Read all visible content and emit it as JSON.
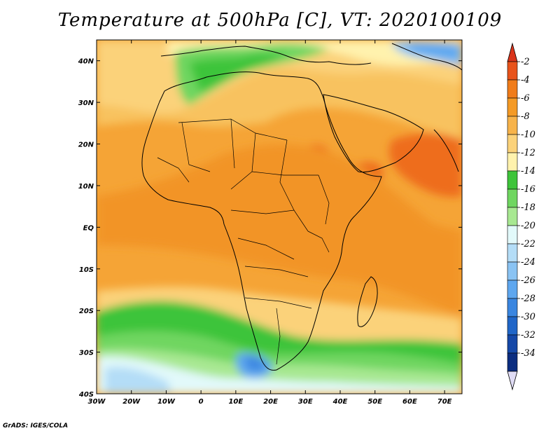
{
  "title": "Temperature at 500hPa [C], VT: 2020100109",
  "credit": "GrADS: IGES/COLA",
  "map": {
    "lon_range": [
      -30,
      75
    ],
    "lat_range": [
      -40,
      45
    ],
    "lon_ticks": [
      {
        "value": -30,
        "label": "30W"
      },
      {
        "value": -20,
        "label": "20W"
      },
      {
        "value": -10,
        "label": "10W"
      },
      {
        "value": 0,
        "label": "0"
      },
      {
        "value": 10,
        "label": "10E"
      },
      {
        "value": 20,
        "label": "20E"
      },
      {
        "value": 30,
        "label": "30E"
      },
      {
        "value": 40,
        "label": "40E"
      },
      {
        "value": 50,
        "label": "50E"
      },
      {
        "value": 60,
        "label": "60E"
      },
      {
        "value": 70,
        "label": "70E"
      }
    ],
    "lat_ticks": [
      {
        "value": 40,
        "label": "40N"
      },
      {
        "value": 30,
        "label": "30N"
      },
      {
        "value": 20,
        "label": "20N"
      },
      {
        "value": 10,
        "label": "10N"
      },
      {
        "value": 0,
        "label": "EQ"
      },
      {
        "value": -10,
        "label": "10S"
      },
      {
        "value": -20,
        "label": "20S"
      },
      {
        "value": -30,
        "label": "30S"
      },
      {
        "value": -40,
        "label": "40S"
      }
    ]
  },
  "colorbar": {
    "levels": [
      "-2",
      "-4",
      "-6",
      "-8",
      "-10",
      "-12",
      "-14",
      "-16",
      "-18",
      "-20",
      "-22",
      "-24",
      "-26",
      "-28",
      "-30",
      "-32",
      "-34"
    ],
    "colors": [
      "#e8531b",
      "#f07c1a",
      "#f49a25",
      "#f7b34a",
      "#fbd27a",
      "#fff2ad",
      "#3ec43a",
      "#6fd660",
      "#a8e892",
      "#e2f9fa",
      "#b4ddf7",
      "#8ac3f3",
      "#5ea7ef",
      "#3a86e0",
      "#2066c8",
      "#1548a8",
      "#0b2d80"
    ],
    "top_arrow_color": "#d9341b",
    "bottom_arrow_color": "#e0dcf5"
  }
}
